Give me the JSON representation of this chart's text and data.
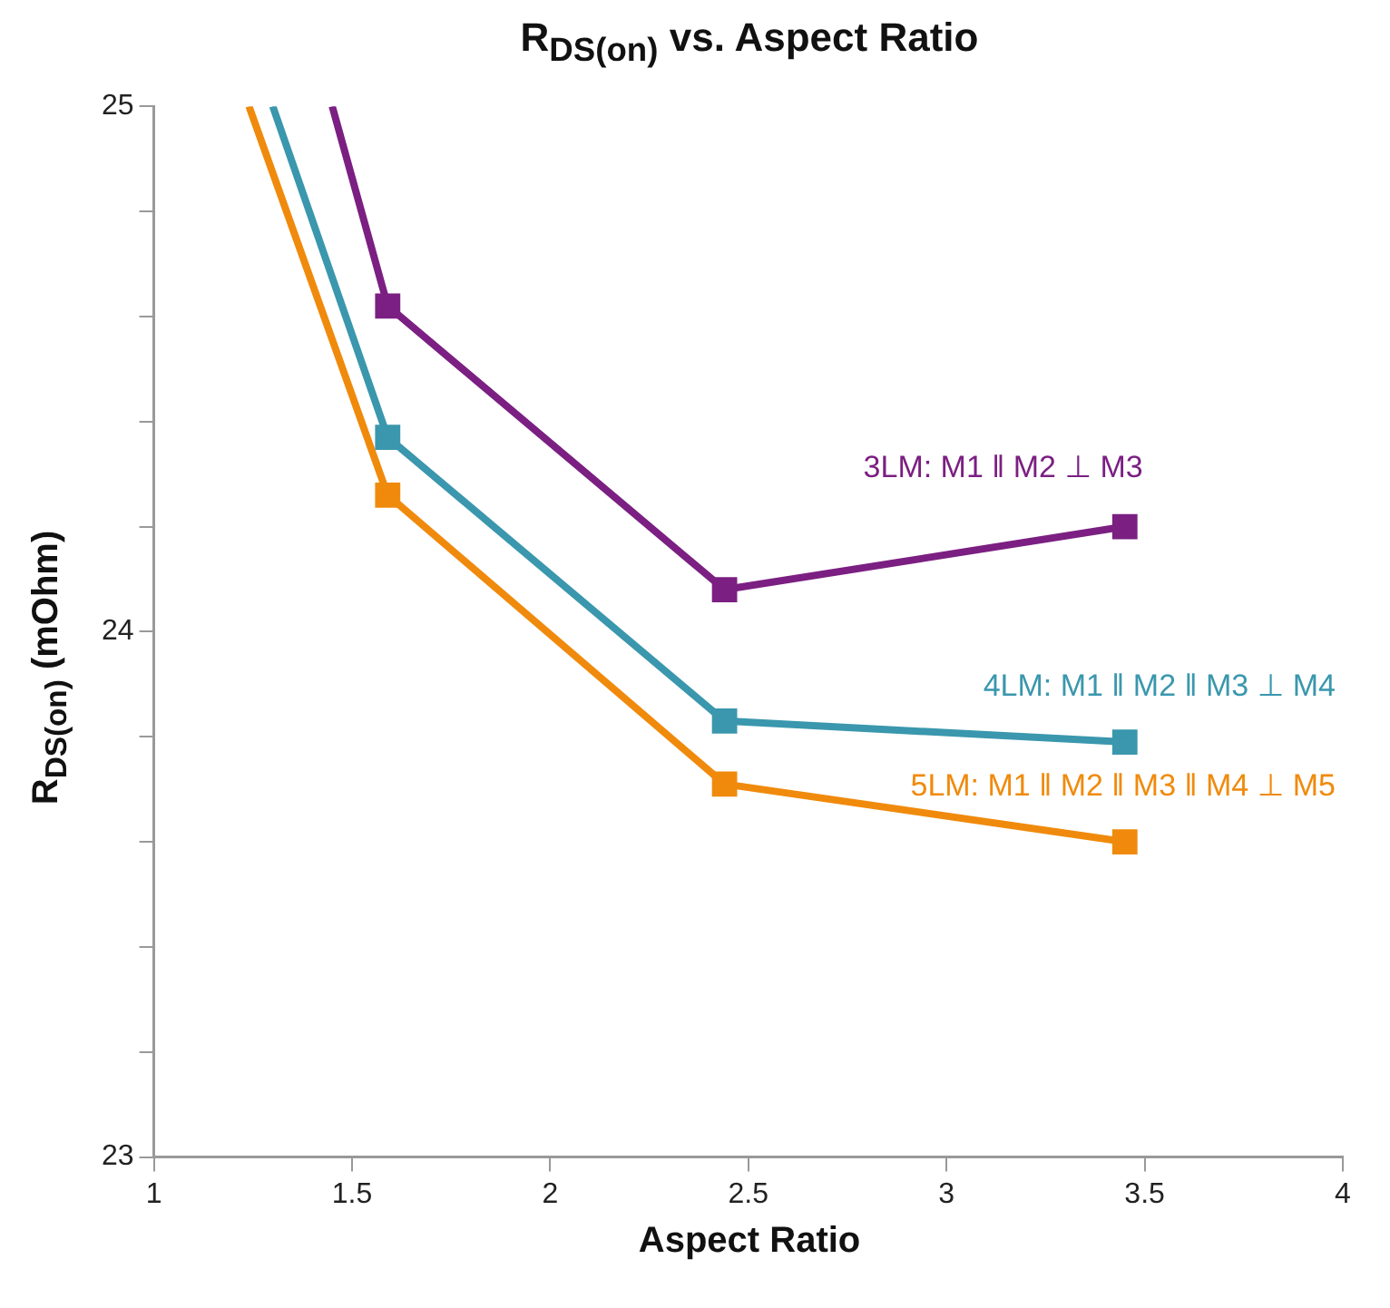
{
  "chart_data": {
    "type": "line",
    "title": "R$_{DS(on)}$ vs. Aspect Ratio",
    "xlabel": "Aspect Ratio",
    "ylabel": "R$_{DS(on)}$ (mOhm)",
    "xlim": [
      1,
      4
    ],
    "xticks": [
      1,
      1.5,
      2,
      2.5,
      3,
      3.5,
      4
    ],
    "ylim": [
      23,
      25
    ],
    "yticks": [
      23,
      {
        "value": 23.2,
        "label": null
      },
      {
        "value": 23.4,
        "label": null
      },
      {
        "value": 23.6,
        "label": null
      },
      {
        "value": 23.8,
        "label": null
      },
      24,
      {
        "value": 24.2,
        "label": null
      },
      {
        "value": 24.4,
        "label": null
      },
      {
        "value": 24.6,
        "label": null
      },
      {
        "value": 24.8,
        "label": null
      },
      25
    ],
    "grid": false,
    "legend": false,
    "marker": "square",
    "line_style": "solid",
    "series": [
      {
        "name": "3LM: M1 ‖ M2 ⊥ M3",
        "color": "#7b1f82",
        "x": [
          1.45,
          1.59,
          2.44,
          3.45
        ],
        "values": [
          25,
          24.62,
          24.08,
          24.2
        ]
      },
      {
        "name": "4LM: M1 ‖ M2 ‖ M3 ⊥ M4",
        "color": "#3a97ad",
        "x": [
          1.3,
          1.59,
          2.44,
          3.45
        ],
        "values": [
          25,
          24.37,
          23.83,
          23.79
        ]
      },
      {
        "name": "5LM: M1 ‖ M2 ‖ M3 ‖ M4 ⊥ M5",
        "color": "#f08a0c",
        "x": [
          1.24,
          1.59,
          2.44,
          3.45
        ],
        "values": [
          25,
          24.26,
          23.71,
          23.6
        ]
      }
    ]
  }
}
